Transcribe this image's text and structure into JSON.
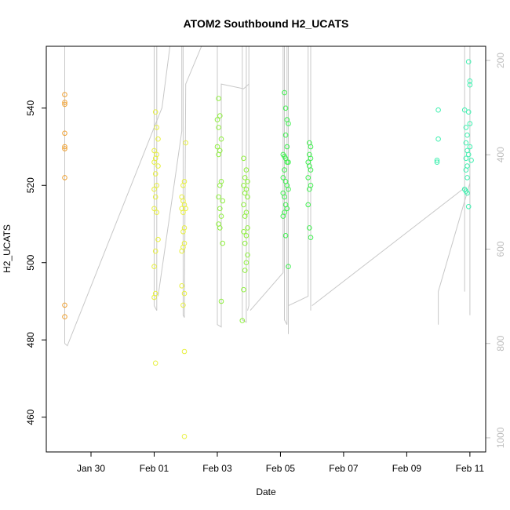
{
  "chart_data": {
    "type": "scatter",
    "title": "ATOM2 Southbound H2_UCATS",
    "xlabel": "Date",
    "ylabel": "H2_UCATS",
    "x_type": "date",
    "x_tick_labels": [
      "Jan 30",
      "Feb 01",
      "Feb 03",
      "Feb 05",
      "Feb 07",
      "Feb 09",
      "Feb 11"
    ],
    "x_tick_dates": [
      "2016-01-30",
      "2016-02-01",
      "2016-02-03",
      "2016-02-05",
      "2016-02-07",
      "2016-02-09",
      "2016-02-11"
    ],
    "xlim": [
      "2016-01-28T14:00",
      "2016-02-11T12:00"
    ],
    "ylim": [
      451,
      556
    ],
    "y_ticks": [
      460,
      480,
      500,
      520,
      540
    ],
    "y2_ticks": [
      200,
      400,
      600,
      800,
      1000
    ],
    "y2_range": [
      1030,
      170
    ],
    "grid": false,
    "legend": "none",
    "colors": {
      "profile_line": "#c8c8c8",
      "right_axis": "#bdbdbd",
      "g1": "#f0a030",
      "g2": "#e8f040",
      "g3": "#90f040",
      "g4": "#40f050",
      "g5": "#40f0b0"
    },
    "groups": [
      {
        "color_key": "g1",
        "points": [
          [
            "2016-01-29T04:00",
            543.5
          ],
          [
            "2016-01-29T04:00",
            541.5
          ],
          [
            "2016-01-29T04:00",
            541
          ],
          [
            "2016-01-29T04:00",
            533.5
          ],
          [
            "2016-01-29T04:00",
            530
          ],
          [
            "2016-01-29T04:00",
            529.5
          ],
          [
            "2016-01-29T04:00",
            522
          ],
          [
            "2016-01-29T04:00",
            489
          ],
          [
            "2016-01-29T04:00",
            486
          ]
        ]
      },
      {
        "color_key": "g2",
        "points": [
          [
            "2016-02-01T01:00",
            539
          ],
          [
            "2016-02-01T02:00",
            535
          ],
          [
            "2016-02-01T03:00",
            532
          ],
          [
            "2016-02-01T00:00",
            529
          ],
          [
            "2016-02-01T02:00",
            528
          ],
          [
            "2016-02-01T01:00",
            527
          ],
          [
            "2016-02-01T00:00",
            526
          ],
          [
            "2016-02-01T03:00",
            525
          ],
          [
            "2016-02-01T01:00",
            523
          ],
          [
            "2016-02-01T02:00",
            520
          ],
          [
            "2016-02-01T00:00",
            519
          ],
          [
            "2016-02-01T01:00",
            517
          ],
          [
            "2016-02-01T00:00",
            514
          ],
          [
            "2016-02-01T02:00",
            513
          ],
          [
            "2016-02-01T03:00",
            506
          ],
          [
            "2016-02-01T01:00",
            503
          ],
          [
            "2016-02-01T00:00",
            499
          ],
          [
            "2016-02-01T01:00",
            492
          ],
          [
            "2016-02-01T00:00",
            491
          ],
          [
            "2016-02-01T01:00",
            474
          ],
          [
            "2016-02-01T22:00",
            520
          ],
          [
            "2016-02-01T23:00",
            521
          ],
          [
            "2016-02-01T21:00",
            517
          ],
          [
            "2016-02-01T22:00",
            516
          ],
          [
            "2016-02-01T23:00",
            515
          ],
          [
            "2016-02-01T21:00",
            514
          ],
          [
            "2016-02-01T22:00",
            513
          ],
          [
            "2016-02-02T00:00",
            514
          ],
          [
            "2016-02-01T23:00",
            509
          ],
          [
            "2016-02-01T22:00",
            508
          ],
          [
            "2016-02-01T23:00",
            505
          ],
          [
            "2016-02-01T21:00",
            503
          ],
          [
            "2016-02-01T22:00",
            504
          ],
          [
            "2016-02-01T21:00",
            494
          ],
          [
            "2016-02-01T23:00",
            492
          ],
          [
            "2016-02-01T22:00",
            489
          ],
          [
            "2016-02-02T00:00",
            531
          ],
          [
            "2016-02-01T23:00",
            477
          ],
          [
            "2016-02-01T23:00",
            455
          ]
        ]
      },
      {
        "color_key": "g3",
        "points": [
          [
            "2016-02-03T01:00",
            542.5
          ],
          [
            "2016-02-03T02:00",
            538
          ],
          [
            "2016-02-03T00:00",
            537
          ],
          [
            "2016-02-03T01:00",
            535
          ],
          [
            "2016-02-03T03:00",
            532
          ],
          [
            "2016-02-03T00:00",
            530
          ],
          [
            "2016-02-03T02:00",
            529
          ],
          [
            "2016-02-03T01:00",
            528
          ],
          [
            "2016-02-03T03:00",
            521
          ],
          [
            "2016-02-03T02:00",
            520
          ],
          [
            "2016-02-03T01:00",
            517
          ],
          [
            "2016-02-03T04:00",
            516
          ],
          [
            "2016-02-03T02:00",
            514
          ],
          [
            "2016-02-03T03:00",
            512
          ],
          [
            "2016-02-03T01:00",
            510
          ],
          [
            "2016-02-03T02:00",
            509
          ],
          [
            "2016-02-03T04:00",
            505
          ],
          [
            "2016-02-03T03:00",
            490
          ],
          [
            "2016-02-03T20:00",
            527
          ],
          [
            "2016-02-03T22:00",
            524
          ],
          [
            "2016-02-03T21:00",
            522
          ],
          [
            "2016-02-03T23:00",
            521
          ],
          [
            "2016-02-03T20:00",
            520
          ],
          [
            "2016-02-03T22:00",
            519
          ],
          [
            "2016-02-03T21:00",
            518
          ],
          [
            "2016-02-03T23:00",
            517
          ],
          [
            "2016-02-03T20:00",
            515
          ],
          [
            "2016-02-03T22:00",
            513
          ],
          [
            "2016-02-03T21:00",
            512
          ],
          [
            "2016-02-03T23:00",
            509
          ],
          [
            "2016-02-03T20:00",
            508
          ],
          [
            "2016-02-03T22:00",
            507
          ],
          [
            "2016-02-03T21:00",
            505
          ],
          [
            "2016-02-03T23:00",
            502
          ],
          [
            "2016-02-03T22:00",
            500
          ],
          [
            "2016-02-03T21:00",
            498
          ],
          [
            "2016-02-03T20:00",
            493
          ],
          [
            "2016-02-03T19:00",
            485
          ]
        ]
      },
      {
        "color_key": "g4",
        "points": [
          [
            "2016-02-05T03:00",
            544
          ],
          [
            "2016-02-05T04:00",
            540
          ],
          [
            "2016-02-05T05:00",
            537
          ],
          [
            "2016-02-05T06:00",
            536
          ],
          [
            "2016-02-05T04:00",
            533
          ],
          [
            "2016-02-05T05:00",
            530
          ],
          [
            "2016-02-05T02:00",
            528
          ],
          [
            "2016-02-05T03:00",
            527.5
          ],
          [
            "2016-02-05T04:00",
            527
          ],
          [
            "2016-02-05T05:00",
            526
          ],
          [
            "2016-02-05T06:00",
            526
          ],
          [
            "2016-02-05T03:00",
            524
          ],
          [
            "2016-02-05T02:00",
            522
          ],
          [
            "2016-02-05T04:00",
            521
          ],
          [
            "2016-02-05T05:00",
            520
          ],
          [
            "2016-02-05T06:00",
            519
          ],
          [
            "2016-02-05T02:00",
            518
          ],
          [
            "2016-02-05T03:00",
            517
          ],
          [
            "2016-02-05T04:00",
            515
          ],
          [
            "2016-02-05T05:00",
            514
          ],
          [
            "2016-02-05T03:00",
            513
          ],
          [
            "2016-02-05T02:00",
            512
          ],
          [
            "2016-02-05T04:00",
            507
          ],
          [
            "2016-02-05T06:00",
            499
          ],
          [
            "2016-02-05T22:00",
            531
          ],
          [
            "2016-02-05T23:00",
            530
          ],
          [
            "2016-02-05T22:00",
            528
          ],
          [
            "2016-02-05T23:00",
            527
          ],
          [
            "2016-02-05T21:00",
            526
          ],
          [
            "2016-02-05T22:00",
            525
          ],
          [
            "2016-02-05T23:00",
            524
          ],
          [
            "2016-02-05T21:00",
            522
          ],
          [
            "2016-02-05T23:00",
            520
          ],
          [
            "2016-02-05T22:00",
            519
          ],
          [
            "2016-02-05T21:00",
            515
          ],
          [
            "2016-02-05T22:00",
            509
          ],
          [
            "2016-02-05T23:00",
            506.5
          ]
        ]
      },
      {
        "color_key": "g5",
        "points": [
          [
            "2016-02-10T00:00",
            539.5
          ],
          [
            "2016-02-10T00:00",
            532
          ],
          [
            "2016-02-09T23:00",
            526.5
          ],
          [
            "2016-02-09T23:00",
            526
          ],
          [
            "2016-02-10T20:00",
            539.5
          ],
          [
            "2016-02-10T23:00",
            552
          ],
          [
            "2016-02-11T00:00",
            547
          ],
          [
            "2016-02-11T00:00",
            546
          ],
          [
            "2016-02-10T23:00",
            539
          ],
          [
            "2016-02-10T21:00",
            535
          ],
          [
            "2016-02-11T00:00",
            536
          ],
          [
            "2016-02-10T22:00",
            533
          ],
          [
            "2016-02-10T21:00",
            531
          ],
          [
            "2016-02-11T00:00",
            530
          ],
          [
            "2016-02-10T22:00",
            529
          ],
          [
            "2016-02-10T23:00",
            528
          ],
          [
            "2016-02-10T21:00",
            527
          ],
          [
            "2016-02-11T01:00",
            526.5
          ],
          [
            "2016-02-10T22:00",
            525
          ],
          [
            "2016-02-10T21:00",
            524
          ],
          [
            "2016-02-10T22:00",
            522
          ],
          [
            "2016-02-10T20:00",
            519
          ],
          [
            "2016-02-10T21:00",
            518.5
          ],
          [
            "2016-02-10T22:00",
            518
          ],
          [
            "2016-02-10T23:00",
            514.5
          ]
        ]
      }
    ],
    "profile_lines": [
      [
        [
          "2016-01-29T04:00",
          60
        ],
        [
          "2016-01-29T04:00",
          800
        ],
        [
          "2016-01-29T06:00",
          805
        ],
        [
          "2016-02-01T06:00",
          300
        ],
        [
          "2016-02-01T12:00",
          150
        ]
      ],
      [
        [
          "2016-02-01T00:00",
          150
        ],
        [
          "2016-02-01T00:00",
          720
        ],
        [
          "2016-02-01T02:00",
          730
        ],
        [
          "2016-02-01T02:00",
          150
        ]
      ],
      [
        [
          "2016-02-01T03:00",
          700
        ],
        [
          "2016-02-01T21:00",
          350
        ],
        [
          "2016-02-01T21:00",
          150
        ]
      ],
      [
        [
          "2016-02-01T22:00",
          150
        ],
        [
          "2016-02-01T22:00",
          740
        ],
        [
          "2016-02-01T23:00",
          745
        ],
        [
          "2016-02-02T00:00",
          250
        ],
        [
          "2016-02-02T12:00",
          150
        ]
      ],
      [
        [
          "2016-02-03T00:00",
          150
        ],
        [
          "2016-02-03T00:00",
          760
        ],
        [
          "2016-02-03T03:00",
          765
        ],
        [
          "2016-02-03T03:00",
          250
        ],
        [
          "2016-02-03T20:00",
          260
        ],
        [
          "2016-02-04T00:00",
          250
        ]
      ],
      [
        [
          "2016-02-03T19:00",
          150
        ],
        [
          "2016-02-03T19:00",
          750
        ],
        [
          "2016-02-03T22:00",
          755
        ],
        [
          "2016-02-03T22:00",
          150
        ],
        [
          "2016-02-04T00:00",
          150
        ],
        [
          "2016-02-04T00:00",
          720
        ],
        [
          "2016-02-03T23:00",
          730
        ]
      ],
      [
        [
          "2016-02-04T01:00",
          730
        ],
        [
          "2016-02-05T02:00",
          650
        ],
        [
          "2016-02-05T02:00",
          150
        ]
      ],
      [
        [
          "2016-02-05T03:00",
          150
        ],
        [
          "2016-02-05T03:00",
          750
        ],
        [
          "2016-02-05T05:00",
          760
        ],
        [
          "2016-02-05T05:00",
          150
        ],
        [
          "2016-02-05T06:00",
          150
        ],
        [
          "2016-02-05T06:00",
          780
        ]
      ],
      [
        [
          "2016-02-05T06:00",
          720
        ],
        [
          "2016-02-05T21:00",
          700
        ],
        [
          "2016-02-05T21:00",
          150
        ],
        [
          "2016-02-05T23:00",
          150
        ],
        [
          "2016-02-05T23:00",
          730
        ]
      ],
      [
        [
          "2016-02-06T00:00",
          720
        ],
        [
          "2016-02-10T20:00",
          470
        ],
        [
          "2016-02-10T20:00",
          150
        ],
        [
          "2016-02-10T20:00",
          690
        ]
      ],
      [
        [
          "2016-02-10T00:00",
          760
        ],
        [
          "2016-02-10T00:00",
          690
        ],
        [
          "2016-02-11T00:00",
          460
        ],
        [
          "2016-02-11T00:00",
          150
        ],
        [
          "2016-02-11T00:00",
          740
        ]
      ]
    ]
  }
}
